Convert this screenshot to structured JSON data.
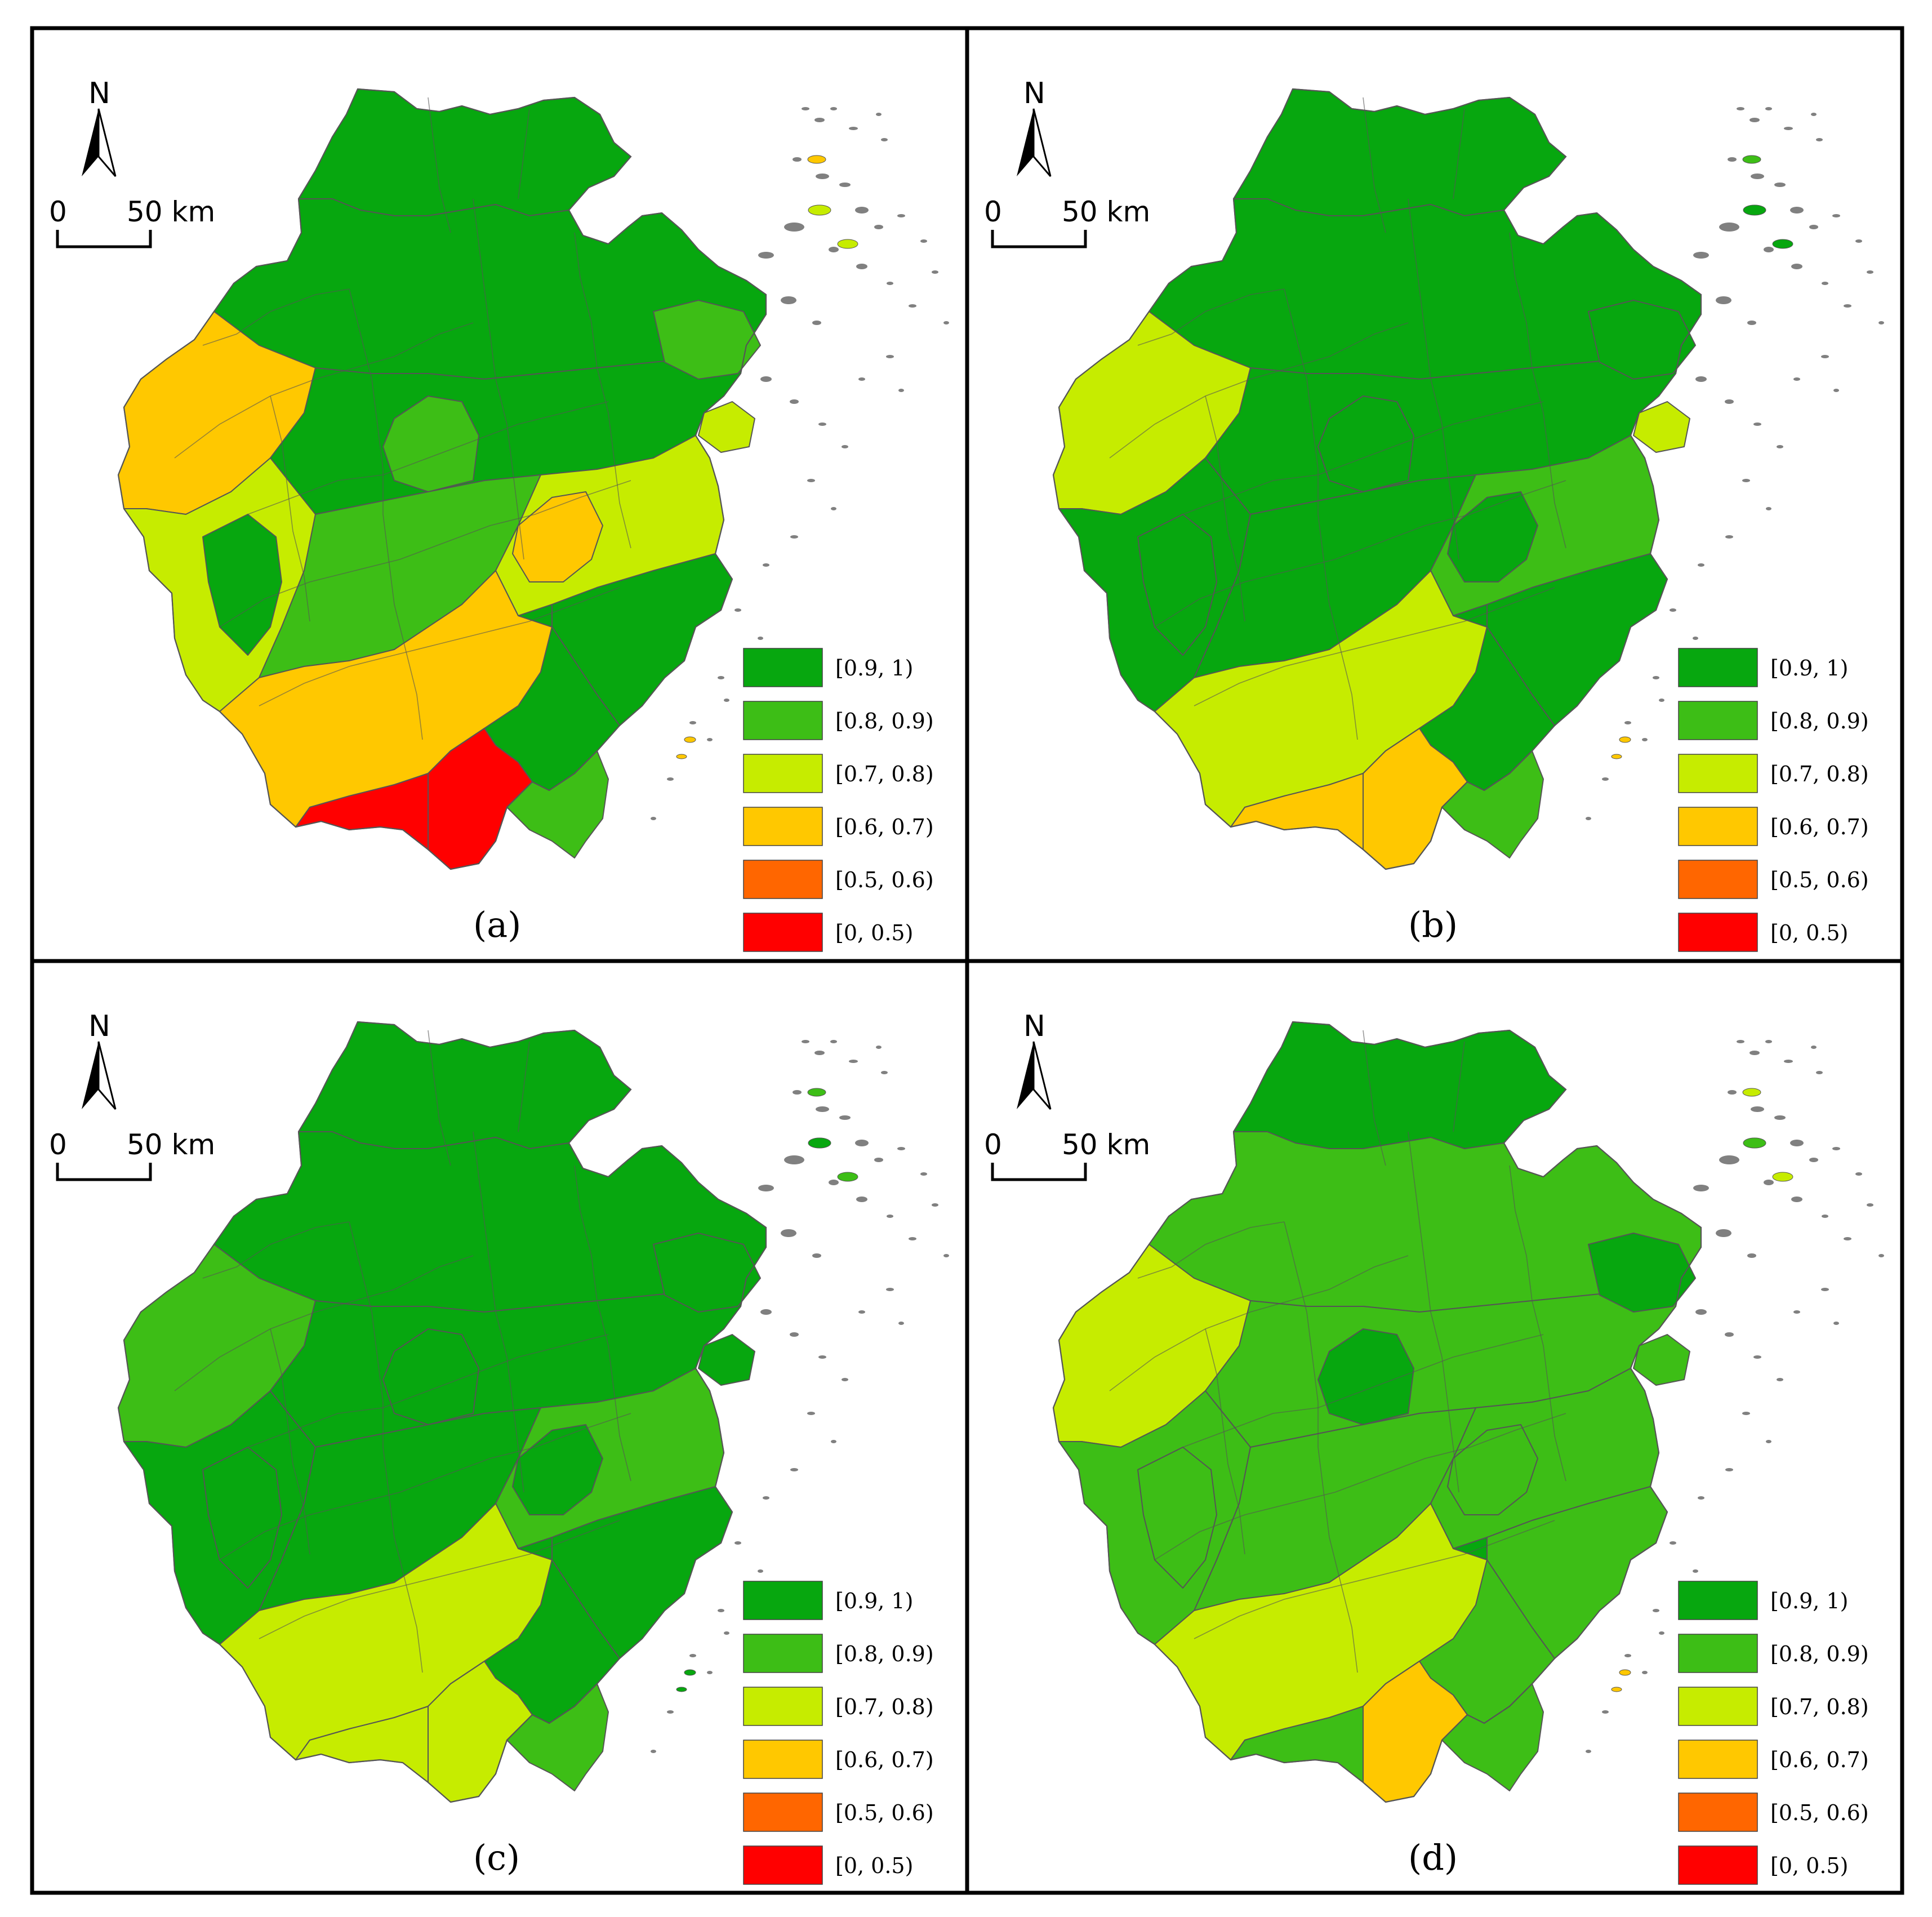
{
  "north_label": "N",
  "scale": {
    "zero": "0",
    "label": "50 km"
  },
  "legend": [
    {
      "label": "[0.9, 1)",
      "color": "#07A70F"
    },
    {
      "label": "[0.8, 0.9)",
      "color": "#3DBE16"
    },
    {
      "label": "[0.7, 0.8)",
      "color": "#C6EC00"
    },
    {
      "label": "[0.6, 0.7)",
      "color": "#FFC800"
    },
    {
      "label": "[0.5, 0.6)",
      "color": "#FF6600"
    },
    {
      "label": "[0, 0.5)",
      "color": "#FF0000"
    }
  ],
  "panels": [
    {
      "label": "(a)"
    },
    {
      "label": "(b)"
    },
    {
      "label": "(c)"
    },
    {
      "label": "(d)"
    }
  ],
  "colors": {
    "border": "#000000",
    "boundary": "#555555",
    "island": "#808080"
  }
}
